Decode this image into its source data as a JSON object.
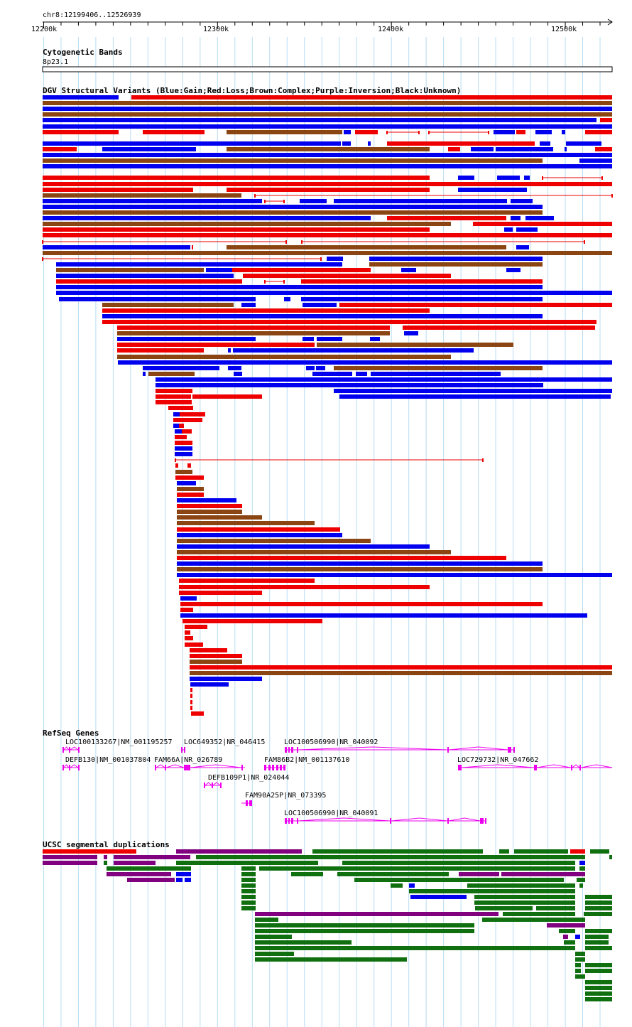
{
  "header": {
    "location": "chr8:12199406..12526939"
  },
  "ruler": {
    "start": 12199406,
    "end": 12526939,
    "ticks": [
      {
        "pos": 12200000,
        "label": "12200k"
      },
      {
        "pos": 12300000,
        "label": "12300k"
      },
      {
        "pos": 12400000,
        "label": "12400k"
      },
      {
        "pos": 12500000,
        "label": "12500k"
      }
    ]
  },
  "tracks": {
    "cytoband": {
      "title": "Cytogenetic Bands",
      "band": "8p23.1"
    },
    "dgv": {
      "title": "DGV Structural Variants (Blue:Gain;Red:Loss;Brown:Complex;Purple:Inversion;Black:Unknown)",
      "colors": {
        "gain": "#0000ee",
        "loss": "#ee0000",
        "complex": "#8b4513",
        "inversion": "#800080",
        "unknown": "#000000"
      }
    },
    "refseq": {
      "title": "RefSeq Genes",
      "color": "#ee00ee",
      "genes": [
        {
          "name": "LOC100133267|NM_001195257"
        },
        {
          "name": "LOC649352|NR_046415"
        },
        {
          "name": "LOC100506990|NR_040092"
        },
        {
          "name": "DEFB130|NM_001037804"
        },
        {
          "name": "FAM66A|NR_026789"
        },
        {
          "name": "FAM86B2|NM_001137610"
        },
        {
          "name": "LOC729732|NR_047662"
        },
        {
          "name": "DEFB109P1|NR_024044"
        },
        {
          "name": "FAM90A25P|NR_073395"
        },
        {
          "name": "LOC100506990|NR_040091"
        }
      ]
    },
    "segdups": {
      "title": "UCSC segmental duplications",
      "colors": {
        "red": "#ee0000",
        "purple": "#800080",
        "green": "#107010",
        "blue": "#0000ee"
      }
    }
  }
}
